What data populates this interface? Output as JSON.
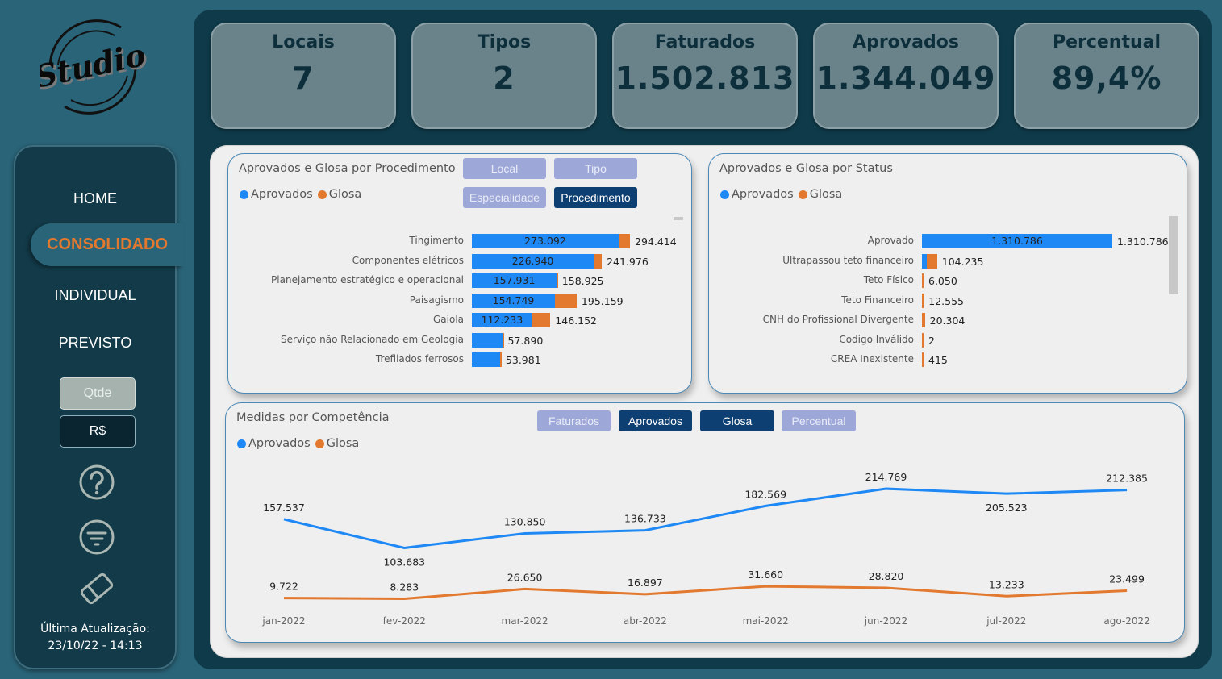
{
  "logo": {
    "text": "Studio"
  },
  "sidebar": {
    "nav": [
      {
        "label": "HOME",
        "active": false
      },
      {
        "label": "CONSOLIDADO",
        "active": true
      },
      {
        "label": "INDIVIDUAL",
        "active": false
      },
      {
        "label": "PREVISTO",
        "active": false
      }
    ],
    "toggle": [
      {
        "label": "Qtde",
        "selected": false
      },
      {
        "label": "R$",
        "selected": true
      }
    ],
    "icons": [
      "help-icon",
      "filter-icon",
      "eraser-icon"
    ],
    "update_label": "Última Atualização:",
    "update_value": "23/10/22 - 14:13"
  },
  "kpis": [
    {
      "label": "Locais",
      "value": "7"
    },
    {
      "label": "Tipos",
      "value": "2"
    },
    {
      "label": "Faturados",
      "value": "1.502.813"
    },
    {
      "label": "Aprovados",
      "value": "1.344.049"
    },
    {
      "label": "Percentual",
      "value": "89,4%"
    }
  ],
  "colors": {
    "aprovados": "#1e88f5",
    "glosa": "#e2792f",
    "active_nav": "#e2792f"
  },
  "procedimento_card": {
    "title": "Aprovados e Glosa por Procedimento",
    "legend": [
      "Aprovados",
      "Glosa"
    ],
    "buttons": [
      {
        "label": "Local",
        "selected": false
      },
      {
        "label": "Tipo",
        "selected": false
      },
      {
        "label": "Especialidade",
        "selected": false
      },
      {
        "label": "Procedimento",
        "selected": true
      }
    ]
  },
  "status_card": {
    "title": "Aprovados e Glosa por Status",
    "legend": [
      "Aprovados",
      "Glosa"
    ]
  },
  "competencia_card": {
    "title": "Medidas por Competência",
    "legend": [
      "Aprovados",
      "Glosa"
    ],
    "buttons": [
      {
        "label": "Faturados",
        "selected": false
      },
      {
        "label": "Aprovados",
        "selected": true
      },
      {
        "label": "Glosa",
        "selected": true
      },
      {
        "label": "Percentual",
        "selected": false
      }
    ]
  },
  "chart_data": [
    {
      "type": "bar",
      "orientation": "horizontal-stacked",
      "title": "Aprovados e Glosa por Procedimento",
      "categories": [
        "Tingimento",
        "Componentes elétricos",
        "Planejamento estratégico e operacional",
        "Paisagismo",
        "Gaiola",
        "Serviço não Relacionado em Geologia",
        "Trefilados ferrosos"
      ],
      "series": [
        {
          "name": "Aprovados",
          "values": [
            273092,
            226940,
            157931,
            154749,
            112233,
            57000,
            52900
          ]
        },
        {
          "name": "Glosa",
          "values": [
            21322,
            15036,
            994,
            40410,
            33919,
            890,
            1081
          ]
        }
      ],
      "inner_labels": [
        "273.092",
        "226.940",
        "157.931",
        "154.749",
        "112.233",
        "",
        ""
      ],
      "total_labels": [
        "294.414",
        "241.976",
        "158.925",
        "195.159",
        "146.152",
        "57.890",
        "53.981"
      ],
      "legend": [
        "Aprovados",
        "Glosa"
      ],
      "legend_position": "top-left"
    },
    {
      "type": "bar",
      "orientation": "horizontal-stacked",
      "title": "Aprovados e Glosa por Status",
      "categories": [
        "Aprovado",
        "Ultrapassou teto financeiro",
        "Teto Físico",
        "Teto Financeiro",
        "CNH do Profissional Divergente",
        "Codigo Inválido",
        "CREA Inexistente"
      ],
      "series": [
        {
          "name": "Aprovados",
          "values": [
            1310786,
            33000,
            2500,
            0,
            0,
            0,
            0
          ]
        },
        {
          "name": "Glosa",
          "values": [
            0,
            71235,
            3550,
            12555,
            20304,
            2,
            415
          ]
        }
      ],
      "inner_labels": [
        "1.310.786",
        "",
        "",
        "",
        "",
        "",
        ""
      ],
      "total_labels": [
        "1.310.786",
        "104.235",
        "6.050",
        "12.555",
        "20.304",
        "2",
        "415"
      ],
      "legend": [
        "Aprovados",
        "Glosa"
      ],
      "legend_position": "top-left"
    },
    {
      "type": "line",
      "title": "Medidas por Competência",
      "x": [
        "jan-2022",
        "fev-2022",
        "mar-2022",
        "abr-2022",
        "mai-2022",
        "jun-2022",
        "jul-2022",
        "ago-2022"
      ],
      "series": [
        {
          "name": "Aprovados",
          "values": [
            157537,
            103683,
            130850,
            136733,
            182569,
            214769,
            205523,
            212385
          ],
          "labels": [
            "157.537",
            "103.683",
            "130.850",
            "136.733",
            "182.569",
            "214.769",
            "205.523",
            "212.385"
          ]
        },
        {
          "name": "Glosa",
          "values": [
            9722,
            8283,
            26650,
            16897,
            31660,
            28820,
            13233,
            23499
          ],
          "labels": [
            "9.722",
            "8.283",
            "26.650",
            "16.897",
            "31.660",
            "28.820",
            "13.233",
            "23.499"
          ]
        }
      ],
      "legend": [
        "Aprovados",
        "Glosa"
      ],
      "legend_position": "top-left",
      "grid": false
    }
  ]
}
